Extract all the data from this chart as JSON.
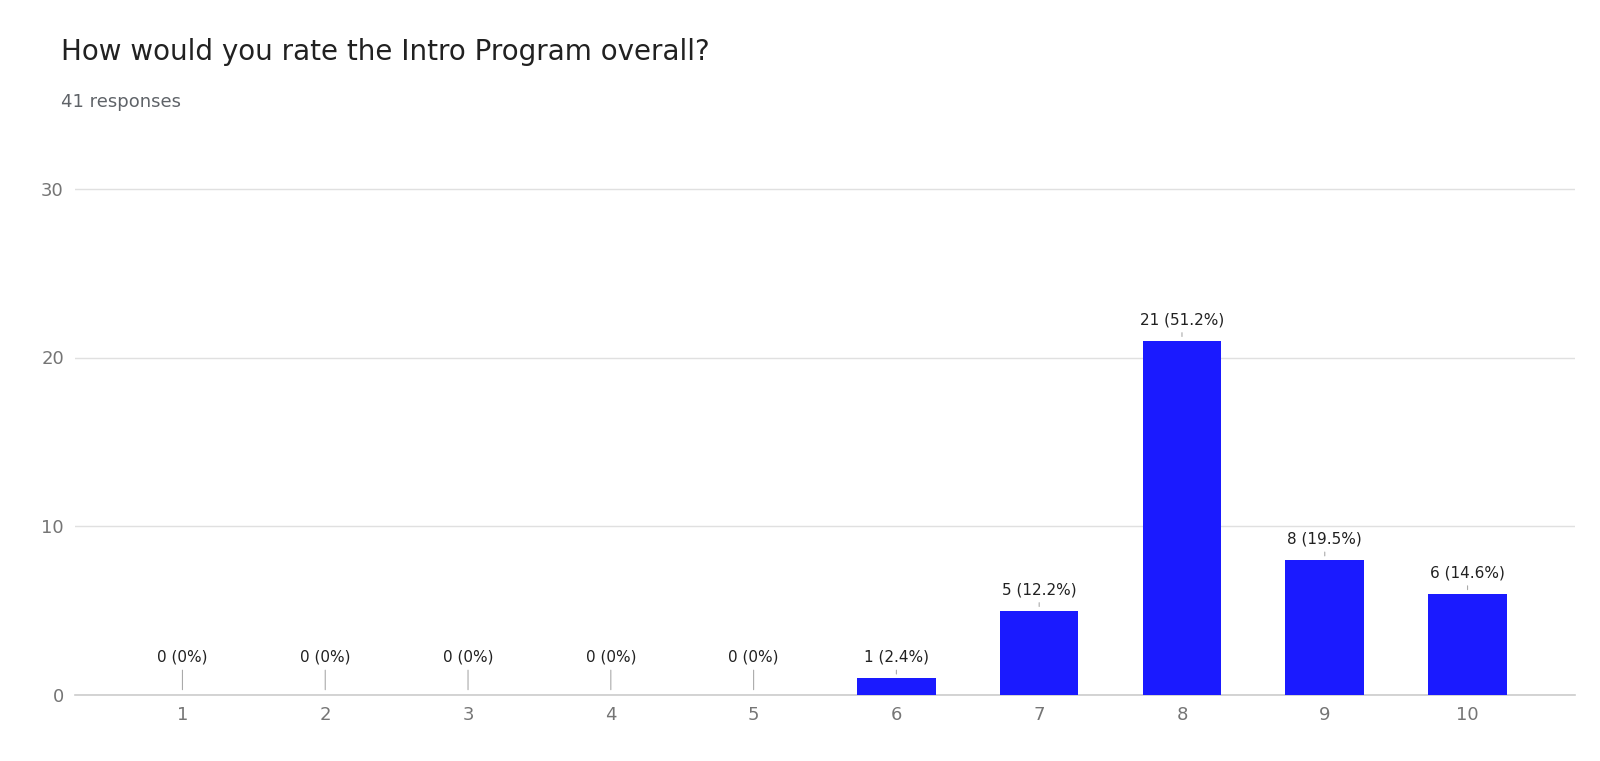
{
  "title": "How would you rate the Intro Program overall?",
  "subtitle": "41 responses",
  "categories": [
    1,
    2,
    3,
    4,
    5,
    6,
    7,
    8,
    9,
    10
  ],
  "values": [
    0,
    0,
    0,
    0,
    0,
    1,
    5,
    21,
    8,
    6
  ],
  "percentages": [
    "0%",
    "0%",
    "0%",
    "0%",
    "0%",
    "2.4%",
    "12.2%",
    "51.2%",
    "19.5%",
    "14.6%"
  ],
  "bar_color": "#1a1aff",
  "background_color": "#ffffff",
  "title_fontsize": 20,
  "subtitle_fontsize": 13,
  "annotation_fontsize": 11,
  "tick_fontsize": 13,
  "yticks": [
    0,
    10,
    20,
    30
  ],
  "ylim": [
    0,
    32
  ],
  "grid_color": "#e0e0e0",
  "title_color": "#212121",
  "subtitle_color": "#5f6368",
  "tick_color": "#757575",
  "annotation_color": "#212121",
  "bar_width": 0.55
}
